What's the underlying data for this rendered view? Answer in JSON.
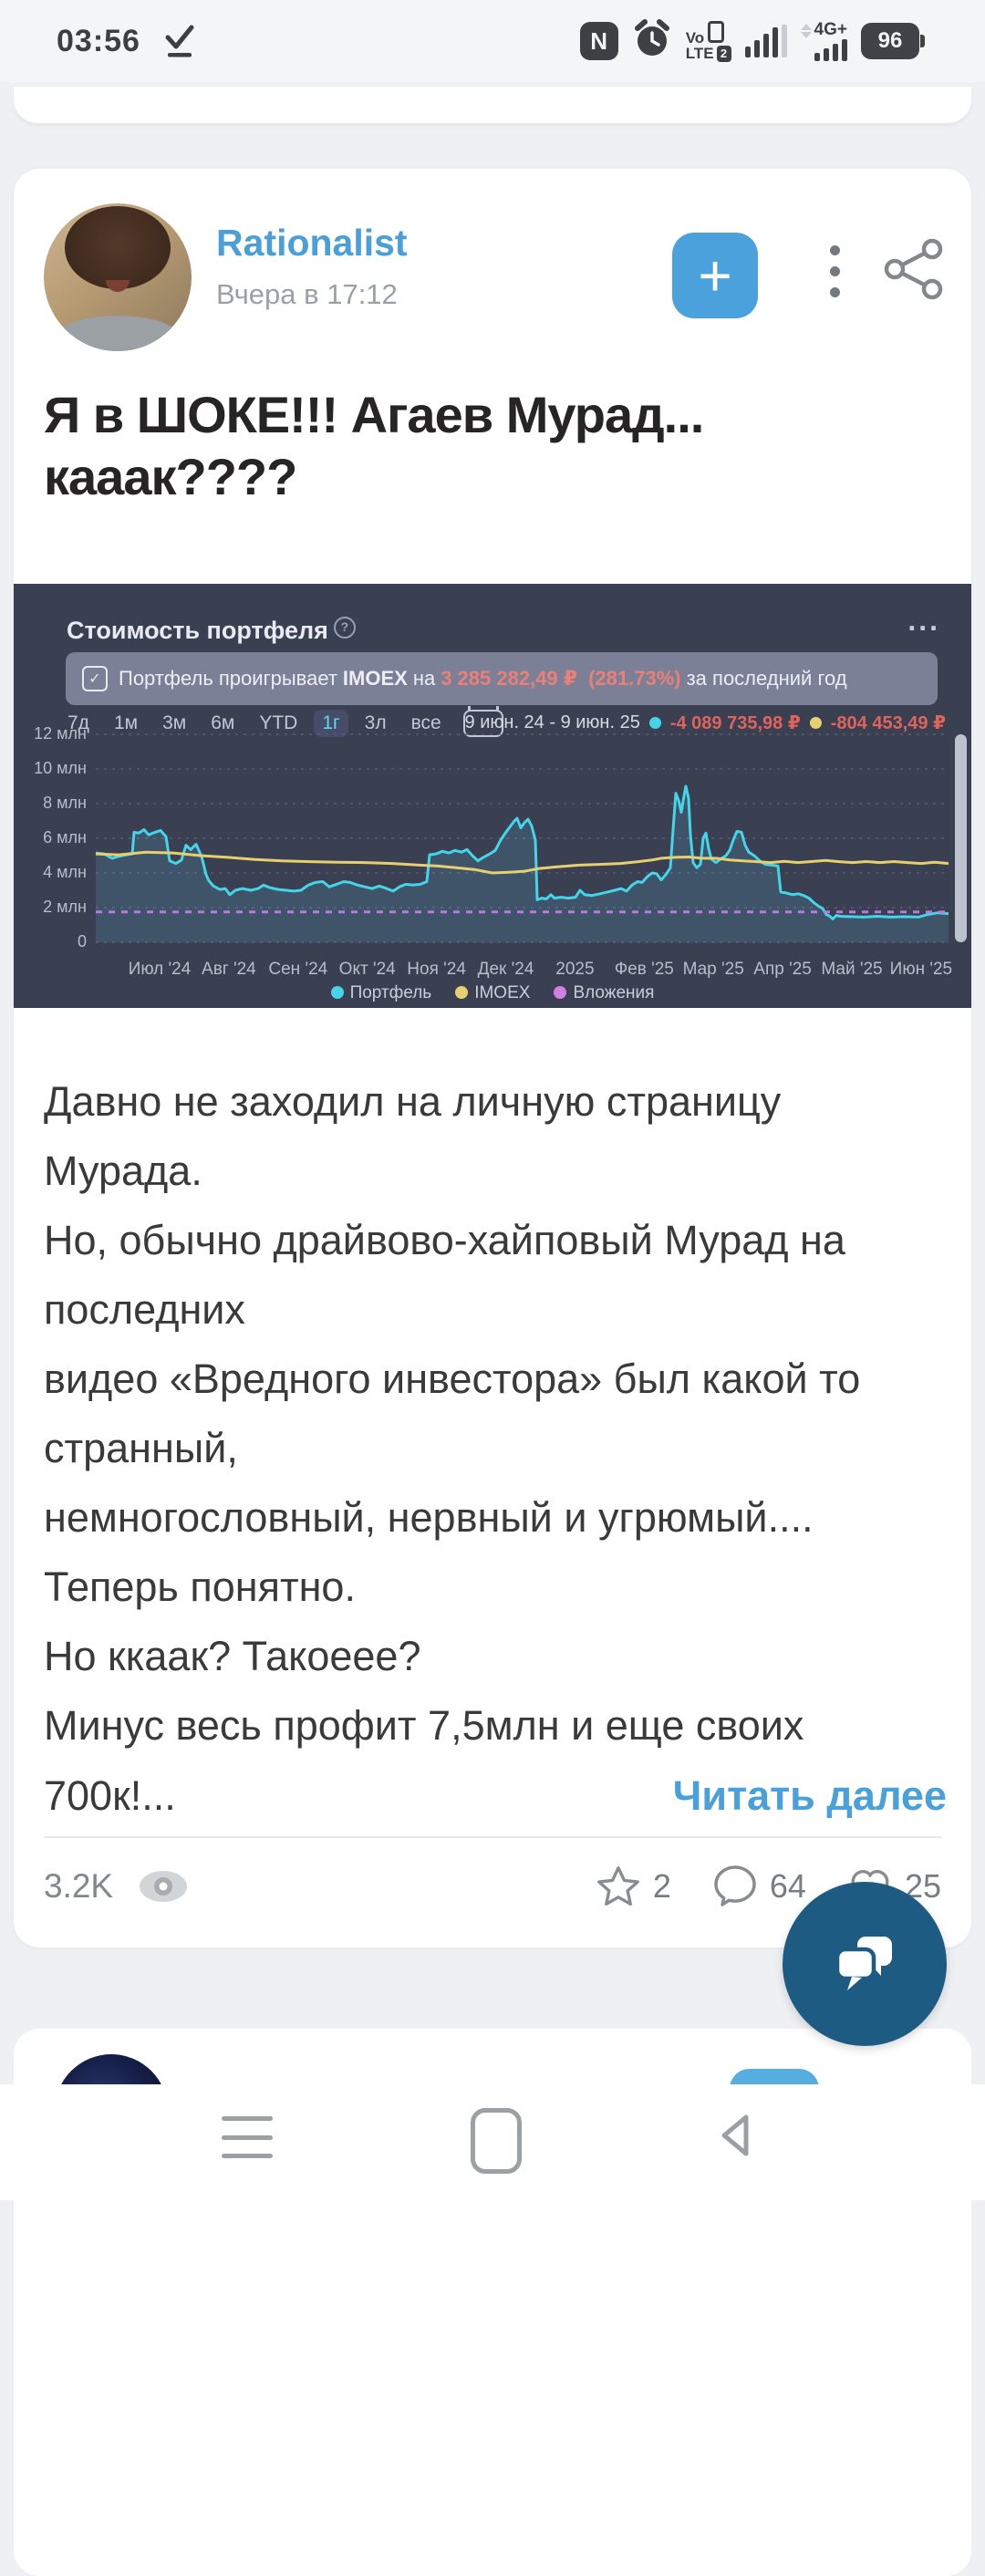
{
  "status_bar": {
    "time": "03:56",
    "nfc_glyph": "N",
    "volte_top": "Vo",
    "volte_bottom": "LTE",
    "volte_sim": "2",
    "network": "4G+",
    "battery": "96"
  },
  "post": {
    "author": "Rationalist",
    "timestamp": "Вчера в 17:12",
    "plus_label": "+",
    "title": "Я в ШОКЕ!!! Агаев Мурад... кааак????",
    "body_text": "Давно не заходил на личную страницу\nМурада.\nНо, обычно драйвово-хайповый Мурад на\nпоследних\nвидео «Вредного инвестора» был какой то\nстранный,\nнемногословный, нервный и угрюмый....\nТеперь понятно.\nНо ккаак? Такоеее?\nМинус весь профит 7,5млн и еще своих",
    "last_line": "700к!...",
    "read_more": "Читать далее",
    "views": "3.2K",
    "stars": "2",
    "comments": "64",
    "likes": "25"
  },
  "chart_data": {
    "type": "line",
    "title": "Стоимость портфеля",
    "info_glyph": "?",
    "menu": "...",
    "banner": {
      "check": "✓",
      "prefix": "Портфель проигрывает",
      "index": "IMOEX",
      "na": "на",
      "loss_value": "3 285 282,49 ₽",
      "loss_pct": "(281.73%)",
      "suffix": "за последний год"
    },
    "periods": [
      "7д",
      "1м",
      "3м",
      "6м",
      "YTD",
      "1г",
      "3л",
      "все"
    ],
    "active_period": "1г",
    "date_range": "9 июн. 24 - 9 июн. 25",
    "range_values": [
      {
        "color": "#45d5e8",
        "value": "-4 089 735,98 ₽"
      },
      {
        "color": "#e6cf6f",
        "value": "-804 453,49 ₽"
      }
    ],
    "ylabel": "млн ₽",
    "ylim": [
      0,
      12
    ],
    "y_ticks": [
      "12 млн",
      "10 млн",
      "8 млн",
      "6 млн",
      "4 млн",
      "2 млн",
      "0"
    ],
    "y_tick_values": [
      12,
      10,
      8,
      6,
      4,
      2,
      0
    ],
    "x_labels": [
      "Июл '24",
      "Авг '24",
      "Сен '24",
      "Окт '24",
      "Ноя '24",
      "Дек '24",
      "2025",
      "Фев '25",
      "Мар '25",
      "Апр '25",
      "Май '25",
      "Июн '25"
    ],
    "x_domain": [
      105,
      1040
    ],
    "grid": true,
    "legend_position": "bottom",
    "series": [
      {
        "name": "Портфель",
        "color": "#45d5e8",
        "fill": "rgba(95,190,228,0.16)",
        "points": [
          [
            105,
            5.15
          ],
          [
            114,
            5.1
          ],
          [
            123,
            4.85
          ],
          [
            130,
            4.95
          ],
          [
            138,
            5.05
          ],
          [
            145,
            5.1
          ],
          [
            147,
            6.35
          ],
          [
            152,
            6.3
          ],
          [
            158,
            6.5
          ],
          [
            163,
            6.2
          ],
          [
            170,
            6.35
          ],
          [
            176,
            6.45
          ],
          [
            182,
            6.1
          ],
          [
            186,
            4.7
          ],
          [
            193,
            4.55
          ],
          [
            199,
            4.75
          ],
          [
            204,
            5.6
          ],
          [
            209,
            5.35
          ],
          [
            215,
            5.65
          ],
          [
            221,
            4.95
          ],
          [
            226,
            3.9
          ],
          [
            229,
            3.55
          ],
          [
            234,
            3.25
          ],
          [
            241,
            3.05
          ],
          [
            247,
            3.1
          ],
          [
            252,
            2.75
          ],
          [
            258,
            3.0
          ],
          [
            266,
            3.1
          ],
          [
            275,
            3.0
          ],
          [
            283,
            3.1
          ],
          [
            289,
            3.3
          ],
          [
            296,
            3.15
          ],
          [
            305,
            3.05
          ],
          [
            314,
            3.0
          ],
          [
            322,
            2.95
          ],
          [
            330,
            3.0
          ],
          [
            338,
            3.3
          ],
          [
            346,
            3.45
          ],
          [
            354,
            3.5
          ],
          [
            361,
            3.2
          ],
          [
            369,
            3.35
          ],
          [
            377,
            3.5
          ],
          [
            384,
            3.45
          ],
          [
            392,
            3.3
          ],
          [
            400,
            3.2
          ],
          [
            408,
            3.1
          ],
          [
            416,
            3.25
          ],
          [
            424,
            3.1
          ],
          [
            431,
            2.95
          ],
          [
            438,
            3.2
          ],
          [
            445,
            3.35
          ],
          [
            453,
            3.3
          ],
          [
            461,
            3.35
          ],
          [
            468,
            3.5
          ],
          [
            471,
            5.05
          ],
          [
            478,
            5.1
          ],
          [
            485,
            5.25
          ],
          [
            492,
            5.15
          ],
          [
            499,
            5.3
          ],
          [
            506,
            5.2
          ],
          [
            512,
            5.35
          ],
          [
            518,
            5.0
          ],
          [
            524,
            4.7
          ],
          [
            530,
            4.9
          ],
          [
            537,
            5.1
          ],
          [
            543,
            5.3
          ],
          [
            549,
            5.9
          ],
          [
            554,
            6.3
          ],
          [
            559,
            6.65
          ],
          [
            564,
            7.0
          ],
          [
            567,
            7.15
          ],
          [
            571,
            6.6
          ],
          [
            575,
            6.9
          ],
          [
            579,
            7.1
          ],
          [
            583,
            6.7
          ],
          [
            587,
            5.9
          ],
          [
            589,
            2.45
          ],
          [
            594,
            2.55
          ],
          [
            599,
            2.5
          ],
          [
            604,
            2.75
          ],
          [
            608,
            2.55
          ],
          [
            615,
            2.6
          ],
          [
            623,
            2.55
          ],
          [
            631,
            2.6
          ],
          [
            636,
            3.0
          ],
          [
            641,
            2.75
          ],
          [
            649,
            2.7
          ],
          [
            658,
            2.8
          ],
          [
            666,
            2.9
          ],
          [
            674,
            3.0
          ],
          [
            681,
            3.1
          ],
          [
            687,
            2.95
          ],
          [
            693,
            3.3
          ],
          [
            699,
            3.5
          ],
          [
            704,
            3.45
          ],
          [
            710,
            3.8
          ],
          [
            715,
            4.0
          ],
          [
            720,
            3.95
          ],
          [
            725,
            3.6
          ],
          [
            730,
            3.9
          ],
          [
            735,
            4.3
          ],
          [
            738,
            6.5
          ],
          [
            741,
            8.6
          ],
          [
            744,
            8.2
          ],
          [
            747,
            7.5
          ],
          [
            750,
            8.45
          ],
          [
            752,
            9.0
          ],
          [
            755,
            8.3
          ],
          [
            757,
            6.2
          ],
          [
            760,
            4.6
          ],
          [
            764,
            4.3
          ],
          [
            768,
            4.5
          ],
          [
            771,
            6.0
          ],
          [
            774,
            6.3
          ],
          [
            777,
            5.4
          ],
          [
            780,
            4.8
          ],
          [
            785,
            4.6
          ],
          [
            790,
            4.8
          ],
          [
            796,
            5.0
          ],
          [
            800,
            5.3
          ],
          [
            804,
            5.9
          ],
          [
            808,
            6.4
          ],
          [
            813,
            6.35
          ],
          [
            817,
            5.6
          ],
          [
            821,
            5.2
          ],
          [
            827,
            5.0
          ],
          [
            833,
            4.7
          ],
          [
            839,
            4.5
          ],
          [
            846,
            4.45
          ],
          [
            853,
            4.4
          ],
          [
            856,
            2.9
          ],
          [
            862,
            2.85
          ],
          [
            869,
            2.75
          ],
          [
            875,
            2.8
          ],
          [
            881,
            2.7
          ],
          [
            887,
            2.55
          ],
          [
            892,
            2.3
          ],
          [
            897,
            2.1
          ],
          [
            902,
            1.95
          ],
          [
            906,
            1.6
          ],
          [
            910,
            1.5
          ],
          [
            913,
            1.35
          ],
          [
            917,
            1.55
          ],
          [
            921,
            1.5
          ],
          [
            932,
            1.48
          ],
          [
            947,
            1.45
          ],
          [
            962,
            1.5
          ],
          [
            977,
            1.45
          ],
          [
            992,
            1.48
          ],
          [
            1007,
            1.45
          ],
          [
            1017,
            1.6
          ],
          [
            1028,
            1.7
          ],
          [
            1040,
            1.65
          ]
        ]
      },
      {
        "name": "IMOEX",
        "color": "#e6cf6f",
        "points": [
          [
            105,
            5.1
          ],
          [
            130,
            5.05
          ],
          [
            160,
            5.2
          ],
          [
            190,
            5.15
          ],
          [
            220,
            5.0
          ],
          [
            250,
            4.9
          ],
          [
            280,
            4.78
          ],
          [
            310,
            4.7
          ],
          [
            340,
            4.65
          ],
          [
            370,
            4.62
          ],
          [
            400,
            4.6
          ],
          [
            430,
            4.55
          ],
          [
            460,
            4.45
          ],
          [
            480,
            4.4
          ],
          [
            500,
            4.3
          ],
          [
            520,
            4.2
          ],
          [
            540,
            4.0
          ],
          [
            560,
            4.05
          ],
          [
            575,
            4.1
          ],
          [
            590,
            4.25
          ],
          [
            610,
            4.35
          ],
          [
            635,
            4.45
          ],
          [
            660,
            4.5
          ],
          [
            680,
            4.55
          ],
          [
            700,
            4.65
          ],
          [
            715,
            4.75
          ],
          [
            725,
            4.85
          ],
          [
            740,
            4.9
          ],
          [
            755,
            4.92
          ],
          [
            770,
            4.85
          ],
          [
            785,
            4.85
          ],
          [
            800,
            4.75
          ],
          [
            815,
            4.7
          ],
          [
            830,
            4.65
          ],
          [
            845,
            4.6
          ],
          [
            860,
            4.67
          ],
          [
            875,
            4.6
          ],
          [
            890,
            4.66
          ],
          [
            905,
            4.72
          ],
          [
            920,
            4.65
          ],
          [
            935,
            4.6
          ],
          [
            950,
            4.66
          ],
          [
            965,
            4.6
          ],
          [
            980,
            4.66
          ],
          [
            995,
            4.6
          ],
          [
            1010,
            4.55
          ],
          [
            1025,
            4.62
          ],
          [
            1040,
            4.55
          ]
        ]
      },
      {
        "name": "Вложения",
        "color": "#bb79dd",
        "dash": [
          7,
          7
        ],
        "points": [
          [
            105,
            1.75
          ],
          [
            1040,
            1.75
          ]
        ]
      }
    ],
    "legend": [
      {
        "label": "Портфель",
        "color": "#45d5e8"
      },
      {
        "label": "IMOEX",
        "color": "#e6cf6f"
      },
      {
        "label": "Вложения",
        "color": "#d17fe3"
      }
    ]
  }
}
